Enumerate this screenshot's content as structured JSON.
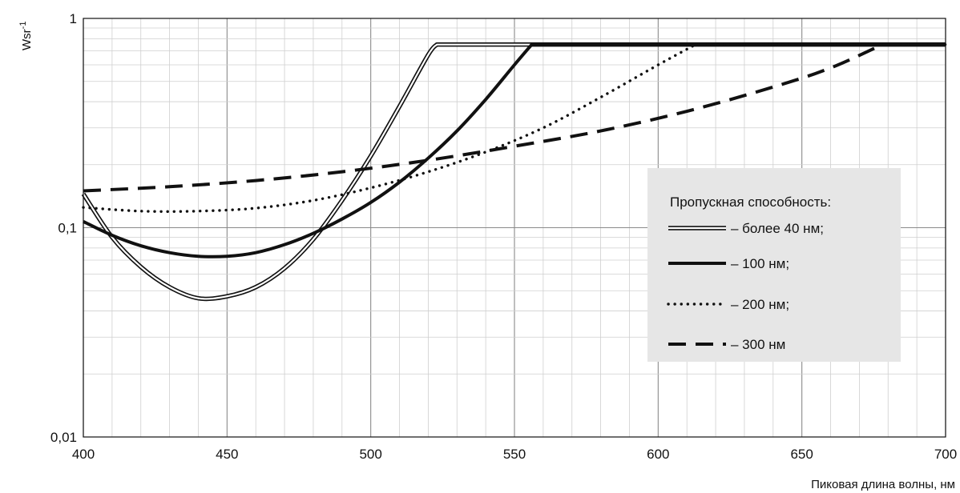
{
  "chart_data": {
    "type": "line",
    "title": "",
    "xlabel": "Пиковая длина волны, нм",
    "ylabel": "Wsr",
    "ylabel_superscript": "-1",
    "xlim": [
      400,
      700
    ],
    "ylim": [
      0.01,
      1
    ],
    "y_scale": "log",
    "grid": true,
    "x_ticks": [
      "400",
      "450",
      "500",
      "550",
      "600",
      "650",
      "700"
    ],
    "y_ticks": [
      {
        "value": 0.01,
        "label": "0,01"
      },
      {
        "value": 0.1,
        "label": "0,1"
      },
      {
        "value": 1,
        "label": "1"
      }
    ],
    "legend": {
      "title": "Пропускная способность:",
      "placement": "right"
    },
    "series": [
      {
        "name": "– более 40 нм;",
        "style": "double",
        "x": [
          400,
          410,
          420,
          430,
          440,
          450,
          460,
          470,
          480,
          490,
          500,
          510,
          520,
          523,
          555,
          700
        ],
        "y": [
          0.145,
          0.09,
          0.065,
          0.052,
          0.046,
          0.047,
          0.052,
          0.064,
          0.088,
          0.135,
          0.22,
          0.38,
          0.67,
          0.75,
          0.75,
          0.75
        ]
      },
      {
        "name": "– 100 нм;",
        "style": "solid",
        "x": [
          400,
          410,
          420,
          430,
          440,
          450,
          460,
          470,
          480,
          490,
          500,
          510,
          520,
          530,
          540,
          550,
          556,
          700
        ],
        "y": [
          0.107,
          0.092,
          0.082,
          0.076,
          0.073,
          0.073,
          0.076,
          0.083,
          0.094,
          0.11,
          0.132,
          0.165,
          0.215,
          0.29,
          0.41,
          0.6,
          0.75,
          0.75
        ]
      },
      {
        "name": "– 200 нм;",
        "style": "dotted",
        "x": [
          400,
          420,
          440,
          460,
          480,
          500,
          520,
          540,
          560,
          580,
          600,
          613,
          700
        ],
        "y": [
          0.125,
          0.12,
          0.12,
          0.124,
          0.135,
          0.155,
          0.185,
          0.23,
          0.3,
          0.42,
          0.6,
          0.75,
          0.75
        ]
      },
      {
        "name": "– 300 нм",
        "style": "dashed",
        "x": [
          400,
          430,
          460,
          490,
          520,
          550,
          580,
          610,
          640,
          660,
          678,
          700
        ],
        "y": [
          0.15,
          0.157,
          0.168,
          0.185,
          0.21,
          0.245,
          0.29,
          0.36,
          0.47,
          0.58,
          0.75,
          0.75
        ]
      }
    ]
  }
}
